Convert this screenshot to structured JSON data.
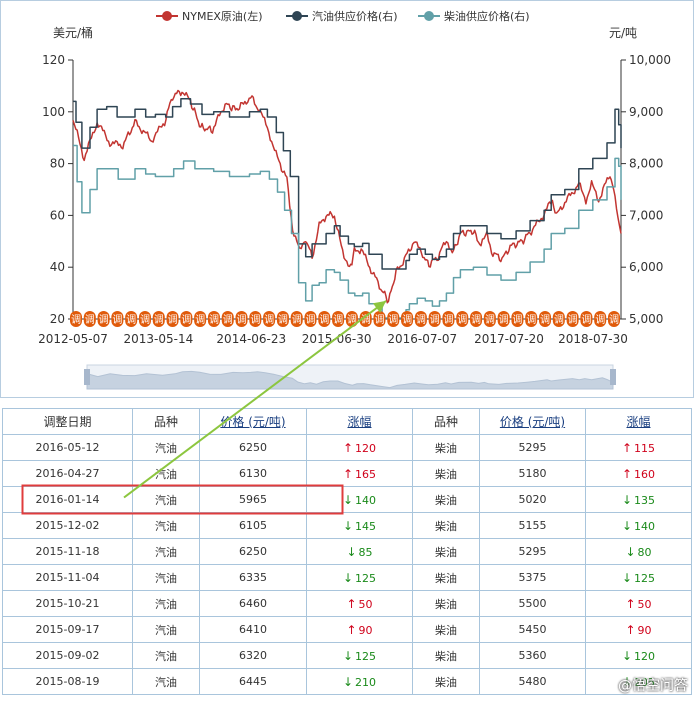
{
  "chart_data": {
    "type": "line",
    "legend_position": "top-center",
    "y_left": {
      "unit_label": "美元/桶",
      "range": [
        20,
        120
      ],
      "ticks": [
        20,
        40,
        60,
        80,
        100,
        120
      ]
    },
    "y_right": {
      "unit_label": "元/吨",
      "range": [
        5000,
        10000
      ],
      "ticks": [
        "5,000",
        "6,000",
        "7,000",
        "8,000",
        "9,000",
        "10,000"
      ]
    },
    "x_range": [
      "2012-05-07",
      "2018-11-20"
    ],
    "x_ticks": [
      "2012-05-07",
      "2013-05-14",
      "2014-06-23",
      "2015-06-30",
      "2016-07-07",
      "2017-07-20",
      "2018-07-30"
    ],
    "series": [
      {
        "name": "NYMEX原油(左)",
        "axis": "left",
        "color": "#c23531",
        "points": [
          [
            "2012-05-07",
            97
          ],
          [
            "2012-06-25",
            82
          ],
          [
            "2012-08-20",
            96
          ],
          [
            "2012-10-15",
            88
          ],
          [
            "2012-12-10",
            87
          ],
          [
            "2013-02-01",
            96
          ],
          [
            "2013-04-15",
            89
          ],
          [
            "2013-06-10",
            96
          ],
          [
            "2013-07-15",
            106
          ],
          [
            "2013-08-25",
            108
          ],
          [
            "2013-10-01",
            104
          ],
          [
            "2013-11-15",
            94
          ],
          [
            "2014-01-05",
            93
          ],
          [
            "2014-03-01",
            103
          ],
          [
            "2014-04-15",
            101
          ],
          [
            "2014-05-20",
            103
          ],
          [
            "2014-06-20",
            106
          ],
          [
            "2014-07-25",
            101
          ],
          [
            "2014-09-01",
            94
          ],
          [
            "2014-10-15",
            82
          ],
          [
            "2014-11-25",
            74
          ],
          [
            "2014-12-20",
            55
          ],
          [
            "2015-01-20",
            46
          ],
          [
            "2015-02-15",
            51
          ],
          [
            "2015-03-15",
            44
          ],
          [
            "2015-04-15",
            56
          ],
          [
            "2015-05-15",
            60
          ],
          [
            "2015-06-20",
            60
          ],
          [
            "2015-07-20",
            48
          ],
          [
            "2015-08-25",
            39
          ],
          [
            "2015-09-15",
            46
          ],
          [
            "2015-10-15",
            47
          ],
          [
            "2015-11-15",
            41
          ],
          [
            "2015-12-15",
            36
          ],
          [
            "2016-01-14",
            31
          ],
          [
            "2016-02-11",
            27
          ],
          [
            "2016-03-15",
            38
          ],
          [
            "2016-04-20",
            43
          ],
          [
            "2016-06-01",
            50
          ],
          [
            "2016-07-15",
            44
          ],
          [
            "2016-08-05",
            41
          ],
          [
            "2016-09-15",
            44
          ],
          [
            "2016-10-20",
            51
          ],
          [
            "2016-11-15",
            45
          ],
          [
            "2016-12-20",
            53
          ],
          [
            "2017-02-15",
            54
          ],
          [
            "2017-03-20",
            48
          ],
          [
            "2017-04-15",
            53
          ],
          [
            "2017-05-05",
            46
          ],
          [
            "2017-06-20",
            43
          ],
          [
            "2017-07-25",
            48
          ],
          [
            "2017-09-15",
            50
          ],
          [
            "2017-10-25",
            54
          ],
          [
            "2017-12-01",
            58
          ],
          [
            "2018-01-25",
            66
          ],
          [
            "2018-02-12",
            60
          ],
          [
            "2018-03-20",
            65
          ],
          [
            "2018-05-20",
            72
          ],
          [
            "2018-06-20",
            66
          ],
          [
            "2018-07-15",
            72
          ],
          [
            "2018-08-15",
            66
          ],
          [
            "2018-10-03",
            76
          ],
          [
            "2018-10-25",
            67
          ],
          [
            "2018-11-20",
            53
          ]
        ]
      },
      {
        "name": "汽油供应价格(右)",
        "axis": "right",
        "color": "#2f4554",
        "points": [
          [
            "2012-05-07",
            9200
          ],
          [
            "2012-05-20",
            8800
          ],
          [
            "2012-06-15",
            8300
          ],
          [
            "2012-07-20",
            8700
          ],
          [
            "2012-08-20",
            9050
          ],
          [
            "2012-10-01",
            9100
          ],
          [
            "2012-11-15",
            8900
          ],
          [
            "2013-02-01",
            9050
          ],
          [
            "2013-03-20",
            8900
          ],
          [
            "2013-05-01",
            8950
          ],
          [
            "2013-06-15",
            8900
          ],
          [
            "2013-07-15",
            9100
          ],
          [
            "2013-08-20",
            9250
          ],
          [
            "2013-10-01",
            9150
          ],
          [
            "2013-11-20",
            8950
          ],
          [
            "2014-01-10",
            9000
          ],
          [
            "2014-03-20",
            8900
          ],
          [
            "2014-05-01",
            8900
          ],
          [
            "2014-06-15",
            9000
          ],
          [
            "2014-08-01",
            9050
          ],
          [
            "2014-09-01",
            8900
          ],
          [
            "2014-10-10",
            8600
          ],
          [
            "2014-11-10",
            8250
          ],
          [
            "2014-12-10",
            7750
          ],
          [
            "2015-01-15",
            6450
          ],
          [
            "2015-02-15",
            6200
          ],
          [
            "2015-03-15",
            6450
          ],
          [
            "2015-04-15",
            6450
          ],
          [
            "2015-05-15",
            6650
          ],
          [
            "2015-06-20",
            6800
          ],
          [
            "2015-07-15",
            6600
          ],
          [
            "2015-08-20",
            6450
          ],
          [
            "2015-09-15",
            6400
          ],
          [
            "2015-10-21",
            6460
          ],
          [
            "2015-11-18",
            6250
          ],
          [
            "2016-01-14",
            5965
          ],
          [
            "2016-02-15",
            5965
          ],
          [
            "2016-04-27",
            6130
          ],
          [
            "2016-05-12",
            6250
          ],
          [
            "2016-06-15",
            6350
          ],
          [
            "2016-07-20",
            6250
          ],
          [
            "2016-08-20",
            6150
          ],
          [
            "2016-09-20",
            6200
          ],
          [
            "2016-10-20",
            6350
          ],
          [
            "2016-11-20",
            6650
          ],
          [
            "2016-12-20",
            6800
          ],
          [
            "2017-02-15",
            6800
          ],
          [
            "2017-04-15",
            6650
          ],
          [
            "2017-06-15",
            6550
          ],
          [
            "2017-08-20",
            6700
          ],
          [
            "2017-10-20",
            6900
          ],
          [
            "2017-12-20",
            7100
          ],
          [
            "2018-01-20",
            7400
          ],
          [
            "2018-03-20",
            7500
          ],
          [
            "2018-05-20",
            7900
          ],
          [
            "2018-07-20",
            8100
          ],
          [
            "2018-09-20",
            8400
          ],
          [
            "2018-10-25",
            9050
          ],
          [
            "2018-11-10",
            8750
          ],
          [
            "2018-11-20",
            8300
          ]
        ]
      },
      {
        "name": "柴油供应价格(右)",
        "axis": "right",
        "color": "#61a0a8",
        "points": [
          [
            "2012-05-07",
            8350
          ],
          [
            "2012-05-25",
            7650
          ],
          [
            "2012-06-15",
            7050
          ],
          [
            "2012-07-20",
            7500
          ],
          [
            "2012-08-20",
            7900
          ],
          [
            "2012-10-01",
            7900
          ],
          [
            "2012-11-20",
            7700
          ],
          [
            "2013-02-01",
            7900
          ],
          [
            "2013-03-20",
            7800
          ],
          [
            "2013-05-01",
            7750
          ],
          [
            "2013-07-20",
            7900
          ],
          [
            "2013-09-01",
            8050
          ],
          [
            "2013-10-20",
            7900
          ],
          [
            "2014-01-10",
            7850
          ],
          [
            "2014-03-20",
            7750
          ],
          [
            "2014-05-01",
            7750
          ],
          [
            "2014-06-15",
            7800
          ],
          [
            "2014-08-01",
            7850
          ],
          [
            "2014-09-10",
            7700
          ],
          [
            "2014-10-15",
            7450
          ],
          [
            "2014-11-15",
            7100
          ],
          [
            "2014-12-15",
            6650
          ],
          [
            "2015-01-15",
            5700
          ],
          [
            "2015-02-15",
            5350
          ],
          [
            "2015-03-15",
            5650
          ],
          [
            "2015-04-15",
            5700
          ],
          [
            "2015-05-15",
            5950
          ],
          [
            "2015-06-20",
            5900
          ],
          [
            "2015-07-15",
            5750
          ],
          [
            "2015-08-20",
            5500
          ],
          [
            "2015-09-17",
            5450
          ],
          [
            "2015-10-21",
            5500
          ],
          [
            "2015-11-18",
            5295
          ],
          [
            "2016-01-14",
            5020
          ],
          [
            "2016-02-15",
            5020
          ],
          [
            "2016-04-27",
            5180
          ],
          [
            "2016-05-12",
            5295
          ],
          [
            "2016-06-15",
            5400
          ],
          [
            "2016-07-20",
            5350
          ],
          [
            "2016-08-20",
            5250
          ],
          [
            "2016-09-20",
            5350
          ],
          [
            "2016-10-20",
            5500
          ],
          [
            "2016-11-20",
            5800
          ],
          [
            "2016-12-20",
            5950
          ],
          [
            "2017-02-15",
            6000
          ],
          [
            "2017-04-15",
            5850
          ],
          [
            "2017-06-15",
            5750
          ],
          [
            "2017-08-20",
            5900
          ],
          [
            "2017-10-20",
            6100
          ],
          [
            "2017-12-20",
            6350
          ],
          [
            "2018-01-20",
            6650
          ],
          [
            "2018-03-20",
            6750
          ],
          [
            "2018-05-20",
            7100
          ],
          [
            "2018-07-20",
            7300
          ],
          [
            "2018-09-20",
            7550
          ],
          [
            "2018-10-25",
            8100
          ],
          [
            "2018-11-10",
            7950
          ],
          [
            "2018-11-20",
            7300
          ]
        ]
      }
    ],
    "marker_band": {
      "axis_value": 20,
      "color": "#e05a0a",
      "labels": [
        "调",
        "调",
        "调",
        "调",
        "调",
        "调",
        "调",
        "调",
        "调",
        "调",
        "调",
        "调",
        "调",
        "调",
        "调",
        "调",
        "调",
        "调",
        "调",
        "调",
        "调",
        "调",
        "调",
        "调",
        "调",
        "调",
        "调",
        "调",
        "调",
        "调",
        "调",
        "调",
        "调",
        "调",
        "调",
        "调",
        "调",
        "调",
        "调",
        "调"
      ]
    },
    "highlight_date": "2016-01-14",
    "grid": false
  },
  "table": {
    "headers": [
      "调整日期",
      "品种",
      "价格 (元/吨)",
      "涨幅",
      "品种",
      "价格 (元/吨)",
      "涨幅"
    ],
    "rows": [
      {
        "date": "2016-05-12",
        "kind1": "汽油",
        "price1": "6250",
        "dir1": "up",
        "chg1": "120",
        "kind2": "柴油",
        "price2": "5295",
        "dir2": "up",
        "chg2": "115"
      },
      {
        "date": "2016-04-27",
        "kind1": "汽油",
        "price1": "6130",
        "dir1": "up",
        "chg1": "165",
        "kind2": "柴油",
        "price2": "5180",
        "dir2": "up",
        "chg2": "160"
      },
      {
        "date": "2016-01-14",
        "kind1": "汽油",
        "price1": "5965",
        "dir1": "down",
        "chg1": "140",
        "kind2": "柴油",
        "price2": "5020",
        "dir2": "down",
        "chg2": "135"
      },
      {
        "date": "2015-12-02",
        "kind1": "汽油",
        "price1": "6105",
        "dir1": "down",
        "chg1": "145",
        "kind2": "柴油",
        "price2": "5155",
        "dir2": "down",
        "chg2": "140"
      },
      {
        "date": "2015-11-18",
        "kind1": "汽油",
        "price1": "6250",
        "dir1": "down",
        "chg1": "85",
        "kind2": "柴油",
        "price2": "5295",
        "dir2": "down",
        "chg2": "80"
      },
      {
        "date": "2015-11-04",
        "kind1": "汽油",
        "price1": "6335",
        "dir1": "down",
        "chg1": "125",
        "kind2": "柴油",
        "price2": "5375",
        "dir2": "down",
        "chg2": "125"
      },
      {
        "date": "2015-10-21",
        "kind1": "汽油",
        "price1": "6460",
        "dir1": "up",
        "chg1": "50",
        "kind2": "柴油",
        "price2": "5500",
        "dir2": "up",
        "chg2": "50"
      },
      {
        "date": "2015-09-17",
        "kind1": "汽油",
        "price1": "6410",
        "dir1": "up",
        "chg1": "90",
        "kind2": "柴油",
        "price2": "5450",
        "dir2": "up",
        "chg2": "90"
      },
      {
        "date": "2015-09-02",
        "kind1": "汽油",
        "price1": "6320",
        "dir1": "down",
        "chg1": "125",
        "kind2": "柴油",
        "price2": "5360",
        "dir2": "down",
        "chg2": "120"
      },
      {
        "date": "2015-08-19",
        "kind1": "汽油",
        "price1": "6445",
        "dir1": "down",
        "chg1": "210",
        "kind2": "柴油",
        "price2": "5480",
        "dir2": "down",
        "chg2": "205"
      }
    ],
    "highlight_row_index": 2,
    "annotation_color": "#e03c3c",
    "arrow_color": "#8cc63f"
  },
  "watermark": "@悟空问答",
  "icons": {
    "up": "arrow-up-icon",
    "down": "arrow-down-icon"
  }
}
